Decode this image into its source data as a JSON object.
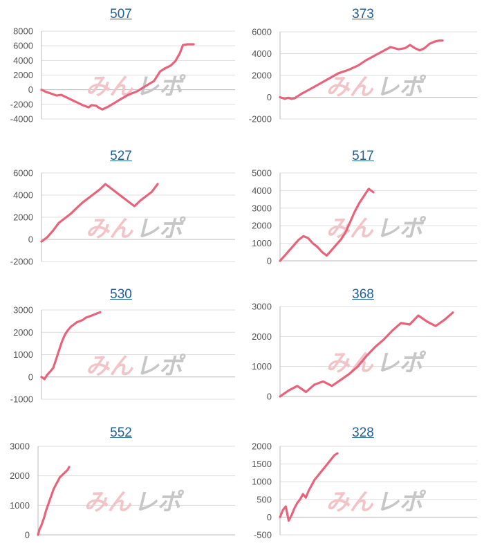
{
  "colors": {
    "line": "#e8637a",
    "title": "#1f5f9e",
    "watermark_pink": "#f2c4c8",
    "watermark_gray": "#c6c6c6"
  },
  "watermark": "みんレポ",
  "chart_data": [
    {
      "type": "line",
      "title": "507",
      "yticks": [
        -4000,
        -2000,
        0,
        2000,
        4000,
        6000,
        8000
      ],
      "ylim": [
        -4000,
        8000
      ],
      "xlim": [
        0,
        100
      ],
      "x": [
        0,
        3,
        6,
        10,
        13,
        17,
        20,
        24,
        27,
        31,
        33,
        36,
        38,
        40,
        44,
        48,
        52,
        57,
        63,
        70,
        74,
        78,
        81,
        85,
        88,
        91,
        93,
        96,
        100
      ],
      "values": [
        0,
        -300,
        -500,
        -800,
        -700,
        -1100,
        -1400,
        -1800,
        -2100,
        -2400,
        -2100,
        -2200,
        -2500,
        -2700,
        -2300,
        -1800,
        -1300,
        -700,
        -200,
        700,
        1200,
        2500,
        2900,
        3300,
        3900,
        5000,
        6100,
        6200,
        6200
      ]
    },
    {
      "type": "line",
      "title": "373",
      "yticks": [
        -2000,
        0,
        2000,
        4000,
        6000
      ],
      "ylim": [
        -2000,
        6000
      ],
      "xlim": [
        0,
        100
      ],
      "x": [
        0,
        3,
        5,
        7,
        9,
        13,
        18,
        24,
        30,
        36,
        42,
        48,
        53,
        58,
        63,
        68,
        73,
        77,
        80,
        83,
        86,
        89,
        92,
        95,
        98,
        100
      ],
      "values": [
        0,
        -150,
        -50,
        -150,
        -100,
        300,
        700,
        1200,
        1700,
        2200,
        2500,
        2900,
        3400,
        3800,
        4200,
        4600,
        4400,
        4500,
        4800,
        4500,
        4300,
        4500,
        4900,
        5100,
        5200,
        5200
      ]
    },
    {
      "type": "line",
      "title": "527",
      "yticks": [
        -2000,
        0,
        2000,
        4000,
        6000
      ],
      "ylim": [
        -2000,
        6000
      ],
      "xlim": [
        0,
        100
      ],
      "x": [
        0,
        5,
        10,
        15,
        20,
        25,
        30,
        35,
        40,
        45,
        50,
        55,
        60,
        65,
        70,
        75,
        80,
        85,
        90,
        95,
        100
      ],
      "values": [
        -200,
        200,
        800,
        1500,
        1900,
        2300,
        2800,
        3300,
        3700,
        4100,
        4500,
        5000,
        4600,
        4200,
        3800,
        3400,
        3000,
        3500,
        3900,
        4300,
        5000
      ]
    },
    {
      "type": "line",
      "title": "517",
      "yticks": [
        0,
        1000,
        2000,
        3000,
        4000,
        5000
      ],
      "ylim": [
        0,
        5000
      ],
      "xlim": [
        0,
        100
      ],
      "x": [
        0,
        5,
        10,
        15,
        20,
        25,
        30,
        35,
        40,
        45,
        50,
        55,
        60,
        65,
        70,
        75,
        80,
        85,
        90,
        95,
        100
      ],
      "values": [
        0,
        300,
        600,
        900,
        1200,
        1400,
        1300,
        1000,
        800,
        500,
        300,
        600,
        900,
        1200,
        1600,
        2200,
        2800,
        3300,
        3700,
        4100,
        3900
      ]
    },
    {
      "type": "line",
      "title": "530",
      "yticks": [
        -1000,
        0,
        1000,
        2000,
        3000
      ],
      "ylim": [
        -1000,
        3000
      ],
      "xlim": [
        0,
        100
      ],
      "x": [
        0,
        5,
        10,
        15,
        20,
        25,
        30,
        35,
        40,
        45,
        50,
        55,
        60,
        65,
        70,
        75,
        80,
        85,
        90,
        95,
        100
      ],
      "values": [
        0,
        -100,
        100,
        250,
        400,
        800,
        1200,
        1600,
        1900,
        2100,
        2250,
        2350,
        2450,
        2500,
        2550,
        2650,
        2700,
        2750,
        2800,
        2850,
        2900
      ]
    },
    {
      "type": "line",
      "title": "368",
      "yticks": [
        0,
        1000,
        2000,
        3000
      ],
      "ylim": [
        0,
        3000
      ],
      "xlim": [
        0,
        100
      ],
      "x": [
        0,
        5,
        10,
        15,
        20,
        25,
        30,
        35,
        40,
        45,
        50,
        55,
        60,
        65,
        70,
        75,
        80,
        85,
        90,
        95,
        100
      ],
      "values": [
        0,
        200,
        350,
        150,
        400,
        500,
        350,
        550,
        750,
        1000,
        1350,
        1650,
        1900,
        2200,
        2450,
        2400,
        2700,
        2500,
        2350,
        2550,
        2800
      ]
    },
    {
      "type": "line",
      "title": "552",
      "yticks": [
        0,
        1000,
        2000,
        3000
      ],
      "ylim": [
        0,
        3000
      ],
      "xlim": [
        0,
        100
      ],
      "x": [
        0,
        5,
        10,
        15,
        20,
        25,
        30,
        35,
        40,
        45,
        50,
        55,
        60,
        65,
        70,
        75,
        80,
        85,
        90,
        95,
        100
      ],
      "values": [
        0,
        200,
        300,
        450,
        600,
        800,
        950,
        1100,
        1250,
        1400,
        1550,
        1650,
        1750,
        1850,
        1950,
        2000,
        2050,
        2100,
        2150,
        2200,
        2300
      ]
    },
    {
      "type": "line",
      "title": "328",
      "yticks": [
        -500,
        0,
        500,
        1000,
        1500,
        2000
      ],
      "ylim": [
        -500,
        2000
      ],
      "xlim": [
        0,
        100
      ],
      "x": [
        0,
        5,
        10,
        15,
        20,
        25,
        30,
        35,
        40,
        45,
        50,
        55,
        60,
        65,
        70,
        75,
        80,
        85,
        90,
        95,
        100
      ],
      "values": [
        0,
        200,
        300,
        -100,
        50,
        250,
        400,
        500,
        650,
        550,
        750,
        900,
        1050,
        1150,
        1250,
        1350,
        1450,
        1550,
        1650,
        1750,
        1800
      ]
    }
  ]
}
